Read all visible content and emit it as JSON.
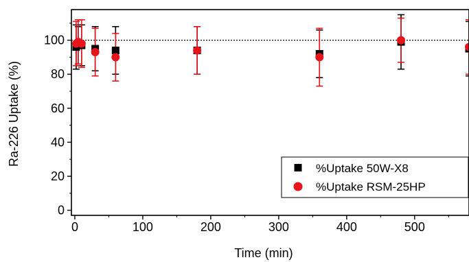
{
  "chart_data": {
    "type": "scatter",
    "title": "",
    "xlabel": "Time (min)",
    "ylabel": "Ra-226 Uptake (%)",
    "xlim": [
      -5,
      580
    ],
    "ylim": [
      -3,
      118
    ],
    "xticks": [
      0,
      100,
      200,
      300,
      400,
      500
    ],
    "yticks": [
      0,
      20,
      40,
      60,
      80,
      100
    ],
    "reference_line": 100,
    "legend_position": "bottom-right",
    "series": [
      {
        "name": "%Uptake 50W-X8",
        "marker": "square",
        "color": "#000000",
        "error_color": "#000000",
        "points": [
          {
            "x": 2,
            "y": 96,
            "err": 13
          },
          {
            "x": 5,
            "y": 97,
            "err": 11
          },
          {
            "x": 10,
            "y": 97,
            "err": 12
          },
          {
            "x": 30,
            "y": 95,
            "err": 13
          },
          {
            "x": 60,
            "y": 94,
            "err": 14
          },
          {
            "x": 180,
            "y": 94,
            "err": 14
          },
          {
            "x": 360,
            "y": 92,
            "err": 14
          },
          {
            "x": 480,
            "y": 99,
            "err": 16
          },
          {
            "x": 580,
            "y": 95,
            "err": 16
          }
        ]
      },
      {
        "name": "%Uptake RSM-25HP",
        "marker": "circle",
        "color": "#e8141b",
        "error_color": "#e8141b",
        "points": [
          {
            "x": 2,
            "y": 98,
            "err": 13
          },
          {
            "x": 5,
            "y": 99,
            "err": 13
          },
          {
            "x": 10,
            "y": 98,
            "err": 14
          },
          {
            "x": 30,
            "y": 93,
            "err": 14
          },
          {
            "x": 60,
            "y": 90,
            "err": 14
          },
          {
            "x": 180,
            "y": 94,
            "err": 14
          },
          {
            "x": 360,
            "y": 90,
            "err": 17
          },
          {
            "x": 480,
            "y": 100,
            "err": 13
          },
          {
            "x": 580,
            "y": 96,
            "err": 16
          }
        ]
      }
    ]
  }
}
